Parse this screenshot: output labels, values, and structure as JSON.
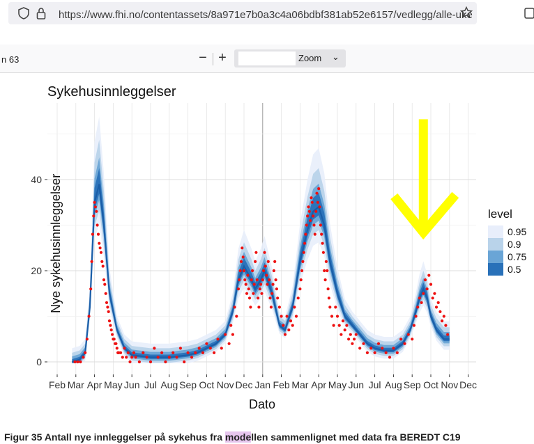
{
  "browser": {
    "url": "https://www.fhi.no/contentassets/8a971e7b0a3c4a06bdbf381ab52e6157/vedlegg/alle-uke",
    "shield_icon": "shield-icon",
    "lock_icon": "lock-icon",
    "star_icon": "star-icon"
  },
  "pdf_toolbar": {
    "page_indicator": "n 63",
    "zoom_out": "−",
    "zoom_in": "+",
    "zoom_label": "Zoom",
    "zoom_chevron": "⌄"
  },
  "caption": {
    "prefix": "Figur 35 Antall nye innleggelser på sykehus fra ",
    "highlight": "mode",
    "suffix": "llen sammenlignet med data fra BEREDT C19"
  },
  "colors": {
    "band95": "#e8eefb",
    "band90": "#b9d3ea",
    "band75": "#6aa5d6",
    "band50": "#2971b9",
    "line": "#1a5ea8",
    "points": "#ee1111",
    "arrow": "#ffff00"
  },
  "chart_data": {
    "type": "area",
    "title": "Sykehusinnleggelser",
    "xlabel": "Dato",
    "ylabel": "Nye sykehusinnleggelser",
    "yticks": [
      0,
      20,
      40
    ],
    "ylim": [
      -3,
      56
    ],
    "x_tick_labels": [
      "Feb",
      "Mar",
      "Apr",
      "May",
      "Jun",
      "Jul",
      "Aug",
      "Sep",
      "Oct",
      "Nov",
      "Dec",
      "Jan",
      "Feb",
      "Mar",
      "Apr",
      "May",
      "Jun",
      "Jul",
      "Aug",
      "Sep",
      "Oct",
      "Nov",
      "Dec"
    ],
    "legend": {
      "title": "level",
      "entries": [
        "0.95",
        "0.9",
        "0.75",
        "0.5"
      ],
      "colors": [
        "#e8eefb",
        "#b9d3ea",
        "#6aa5d6",
        "#2971b9"
      ]
    },
    "median_curve": {
      "x": [
        0.8,
        1.2,
        1.5,
        1.75,
        2.0,
        2.25,
        2.5,
        2.8,
        3.2,
        3.6,
        4.0,
        5,
        6,
        7,
        7.5,
        8,
        8.5,
        9,
        9.4,
        9.7,
        10,
        10.4,
        10.6,
        10.9,
        11.1,
        11.5,
        11.9,
        12.2,
        12.6,
        13.0,
        13.4,
        13.7,
        14.0,
        14.3,
        14.6,
        15.0,
        15.4,
        15.8,
        16.2,
        16.6,
        17,
        17.5,
        18,
        18.5,
        18.9,
        19.2,
        19.4,
        19.6,
        19.8,
        20.0,
        20.3,
        20.7,
        21.0
      ],
      "y": [
        0,
        0.5,
        2,
        12,
        35,
        39,
        30,
        15,
        7,
        3,
        1.5,
        1,
        1,
        1.5,
        2,
        3,
        4,
        6,
        11,
        18,
        21,
        18,
        16,
        18,
        20,
        15,
        8,
        7,
        12,
        22,
        29,
        33,
        34,
        30,
        22,
        15,
        10,
        8,
        6,
        4,
        3,
        2.5,
        2.5,
        4,
        7,
        11,
        14,
        16,
        14,
        10,
        7,
        5,
        5
      ]
    },
    "band_halfwidths_at_peaks": {
      "x": [
        2.25,
        11.1,
        14.0,
        19.6
      ],
      "level_0.5": [
        3,
        2,
        3,
        2
      ],
      "level_0.75": [
        5,
        3.5,
        5,
        4
      ],
      "level_0.9": [
        9,
        6,
        9,
        6
      ],
      "level_0.95": [
        15,
        9,
        14,
        10
      ]
    },
    "observed_points": {
      "approx": true,
      "x": [
        0.95,
        1.1,
        1.25,
        1.4,
        1.5,
        1.6,
        1.7,
        1.8,
        1.85,
        1.9,
        1.95,
        2.0,
        2.05,
        2.1,
        2.15,
        2.2,
        2.25,
        2.3,
        2.35,
        2.4,
        2.45,
        2.5,
        2.55,
        2.6,
        2.65,
        2.7,
        2.75,
        2.8,
        2.85,
        2.9,
        2.95,
        3.0,
        3.05,
        3.1,
        3.15,
        3.2,
        3.25,
        3.3,
        3.4,
        3.5,
        3.6,
        3.7,
        3.8,
        3.9,
        4.0,
        4.1,
        4.2,
        4.4,
        4.6,
        4.8,
        5.0,
        5.2,
        5.4,
        5.6,
        5.8,
        6.0,
        6.2,
        6.4,
        6.6,
        6.8,
        7.0,
        7.2,
        7.4,
        7.6,
        7.8,
        8.0,
        8.2,
        8.4,
        8.6,
        8.8,
        9.0,
        9.2,
        9.3,
        9.4,
        9.5,
        9.6,
        9.7,
        9.75,
        9.8,
        9.85,
        9.9,
        9.95,
        10.0,
        10.05,
        10.1,
        10.15,
        10.2,
        10.25,
        10.3,
        10.35,
        10.4,
        10.45,
        10.5,
        10.55,
        10.6,
        10.65,
        10.7,
        10.75,
        10.8,
        10.85,
        10.9,
        10.95,
        11.0,
        11.05,
        11.1,
        11.15,
        11.2,
        11.25,
        11.3,
        11.35,
        11.4,
        11.45,
        11.5,
        11.55,
        11.6,
        11.65,
        11.7,
        11.75,
        11.8,
        11.9,
        12.0,
        12.1,
        12.2,
        12.3,
        12.4,
        12.5,
        12.6,
        12.7,
        12.8,
        12.9,
        13.0,
        13.05,
        13.1,
        13.15,
        13.2,
        13.25,
        13.3,
        13.35,
        13.4,
        13.45,
        13.5,
        13.55,
        13.6,
        13.65,
        13.7,
        13.75,
        13.8,
        13.85,
        13.9,
        13.95,
        14.0,
        14.05,
        14.1,
        14.15,
        14.2,
        14.25,
        14.3,
        14.35,
        14.4,
        14.45,
        14.5,
        14.55,
        14.6,
        14.7,
        14.8,
        14.9,
        15.0,
        15.1,
        15.2,
        15.3,
        15.4,
        15.5,
        15.6,
        15.7,
        15.8,
        15.9,
        16.0,
        16.2,
        16.4,
        16.6,
        16.8,
        17.0,
        17.2,
        17.4,
        17.6,
        17.8,
        18.0,
        18.2,
        18.4,
        18.6,
        18.8,
        19.0,
        19.1,
        19.2,
        19.3,
        19.4,
        19.5,
        19.6,
        19.7,
        19.8,
        19.9,
        20.0,
        20.1,
        20.2,
        20.3,
        20.4,
        20.5,
        20.6,
        20.7,
        20.8,
        20.9
      ],
      "y": [
        0,
        0,
        0,
        1,
        2,
        5,
        10,
        16,
        22,
        28,
        32,
        35,
        34,
        33,
        30,
        28,
        26,
        25,
        24,
        22,
        21,
        18,
        17,
        15,
        13,
        12,
        11,
        9,
        8,
        7,
        6,
        5,
        5,
        4,
        4,
        3,
        2,
        2,
        2,
        1,
        3,
        1,
        2,
        0,
        1,
        2,
        1,
        0,
        2,
        1,
        0,
        3,
        1,
        2,
        0,
        1,
        2,
        1,
        3,
        0,
        2,
        1,
        2,
        3,
        2,
        4,
        3,
        2,
        5,
        3,
        6,
        4,
        8,
        6,
        12,
        10,
        16,
        18,
        20,
        22,
        25,
        23,
        20,
        18,
        17,
        15,
        19,
        16,
        14,
        12,
        18,
        20,
        15,
        17,
        22,
        24,
        18,
        14,
        12,
        16,
        17,
        15,
        18,
        20,
        24,
        21,
        19,
        17,
        22,
        18,
        14,
        12,
        15,
        17,
        20,
        22,
        18,
        16,
        14,
        12,
        10,
        8,
        6,
        10,
        7,
        9,
        8,
        12,
        10,
        14,
        16,
        18,
        20,
        22,
        24,
        26,
        28,
        30,
        32,
        34,
        33,
        31,
        36,
        35,
        32,
        30,
        28,
        33,
        37,
        35,
        38,
        34,
        30,
        28,
        26,
        24,
        20,
        18,
        22,
        20,
        16,
        14,
        12,
        10,
        8,
        12,
        10,
        8,
        6,
        9,
        7,
        8,
        5,
        6,
        4,
        5,
        6,
        3,
        4,
        2,
        3,
        2,
        4,
        3,
        2,
        1,
        3,
        2,
        5,
        4,
        6,
        5,
        8,
        10,
        12,
        14,
        13,
        15,
        18,
        16,
        19,
        17,
        14,
        15,
        12,
        13,
        11,
        9,
        10,
        8,
        6
      ]
    },
    "annotation_arrow": {
      "x": 19.6,
      "y_from": 52,
      "y_to": 29
    }
  }
}
